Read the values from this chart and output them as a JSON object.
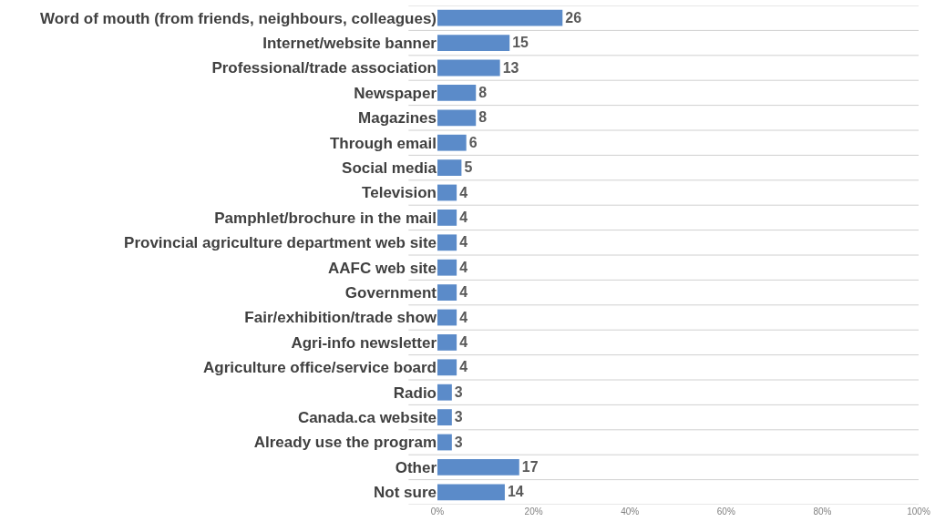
{
  "chart_data": {
    "type": "bar",
    "orientation": "horizontal",
    "categories": [
      "Word of mouth (from friends, neighbours, colleagues)",
      "Internet/website banner",
      "Professional/trade association",
      "Newspaper",
      "Magazines",
      "Through email",
      "Social media",
      "Television",
      "Pamphlet/brochure in the mail",
      "Provincial agriculture department web site",
      "AAFC web site",
      "Government",
      "Fair/exhibition/trade show",
      "Agri-info newsletter",
      "Agriculture office/service board",
      "Radio",
      "Canada.ca website",
      "Already use the program",
      "Other",
      "Not sure"
    ],
    "values": [
      26,
      15,
      13,
      8,
      8,
      6,
      5,
      4,
      4,
      4,
      4,
      4,
      4,
      4,
      4,
      3,
      3,
      3,
      17,
      14
    ],
    "color": "#5b8bc9",
    "data_labels": true,
    "grid": "y",
    "xlim": [
      0,
      100
    ],
    "xticks": [
      {
        "value": 0,
        "label": "0%"
      },
      {
        "value": 20,
        "label": "20%"
      },
      {
        "value": 40,
        "label": "40%"
      },
      {
        "value": 60,
        "label": "60%"
      },
      {
        "value": 80,
        "label": "80%"
      },
      {
        "value": 100,
        "label": "100%"
      }
    ]
  }
}
